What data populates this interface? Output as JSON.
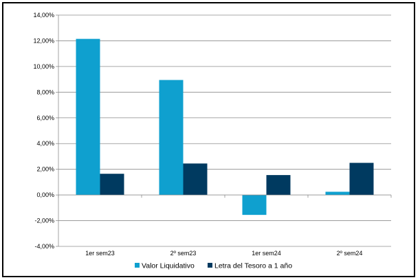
{
  "chart_data": {
    "type": "bar",
    "categories": [
      "1er sem23",
      "2º sem23",
      "1er sem24",
      "2º sem24"
    ],
    "series": [
      {
        "name": "Valor Liquidativo",
        "color": "#0fa0cf",
        "values": [
          12.15,
          8.95,
          -1.55,
          0.25
        ]
      },
      {
        "name": "Letra del Tesoro a 1 año",
        "color": "#003a60",
        "values": [
          1.65,
          2.45,
          1.55,
          2.5
        ]
      }
    ],
    "ylim": [
      -4,
      14
    ],
    "yticks": [
      -4,
      -2,
      0,
      2,
      4,
      6,
      8,
      10,
      12,
      14
    ],
    "ytick_labels": [
      "-4,00%",
      "-2,00%",
      "0,00%",
      "2,00%",
      "4,00%",
      "6,00%",
      "8,00%",
      "10,00%",
      "12,00%",
      "14,00%"
    ],
    "grid": true,
    "legend_position": "bottom"
  }
}
